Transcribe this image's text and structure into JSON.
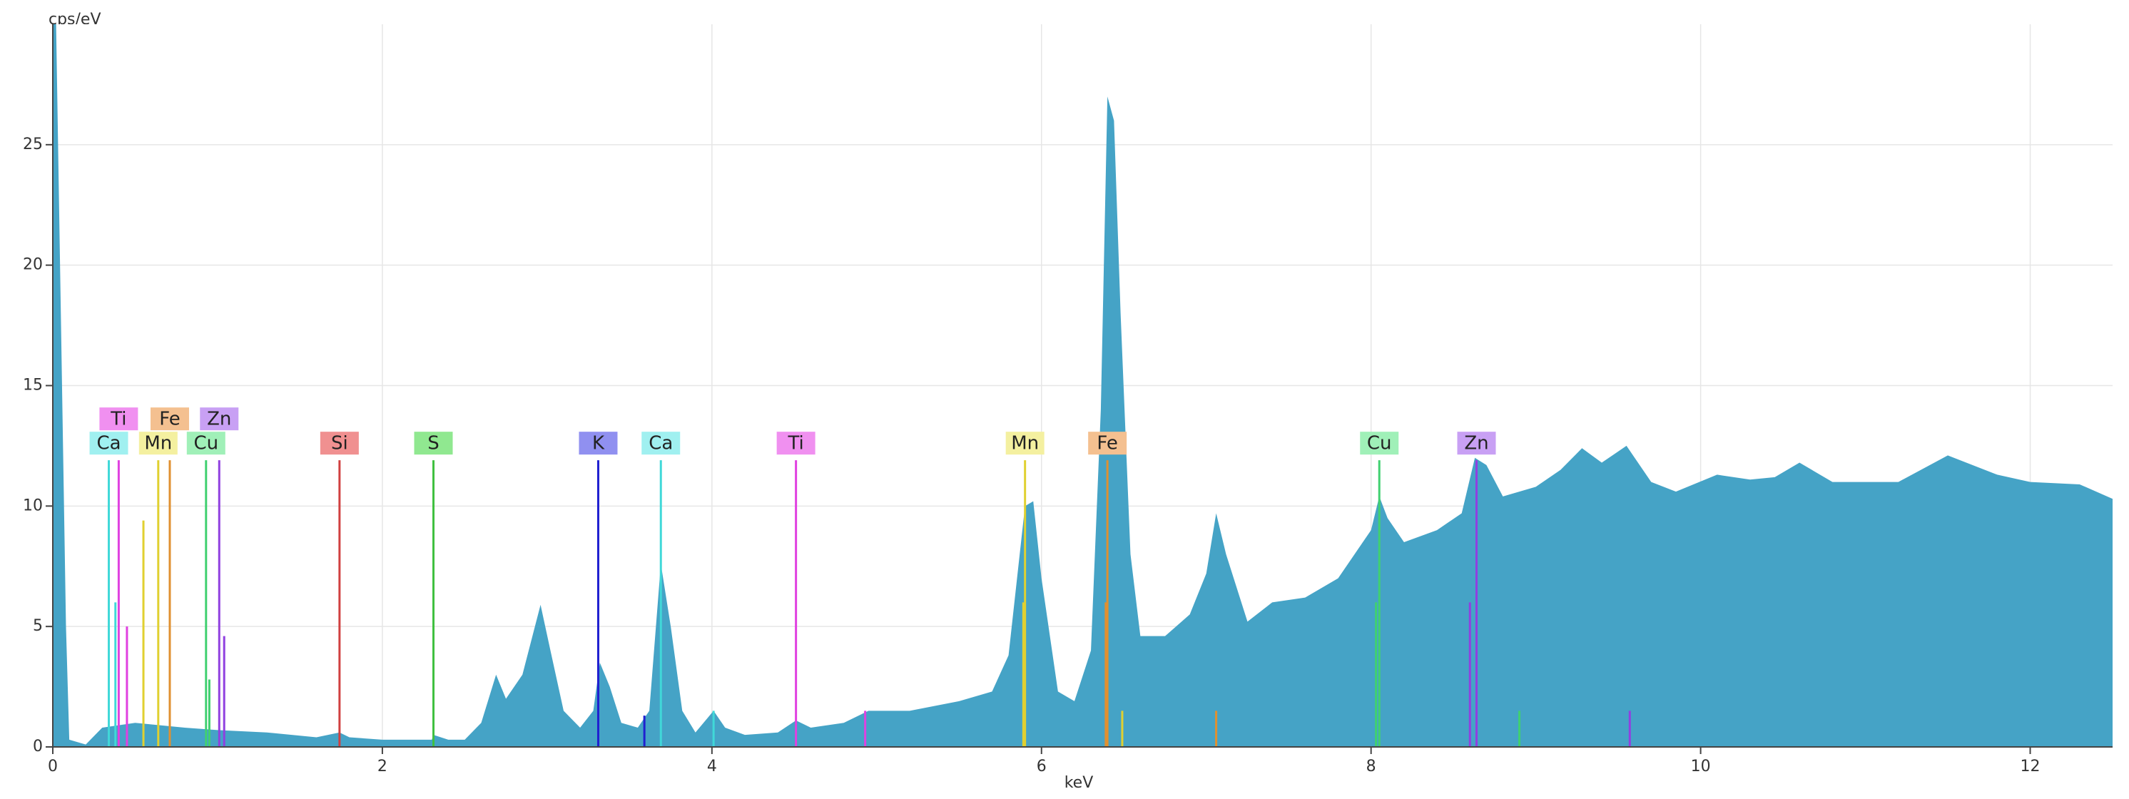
{
  "chart_data": {
    "type": "area",
    "y_label": "cps/eV",
    "x_label": "keV",
    "xlim": [
      0,
      12.5
    ],
    "ylim": [
      0,
      30
    ],
    "xticks": [
      0,
      2,
      4,
      6,
      8,
      10,
      12
    ],
    "yticks": [
      0,
      5,
      10,
      15,
      20,
      25
    ],
    "grid": true,
    "color": "#45a3c6",
    "x": [
      0,
      0.02,
      0.08,
      0.1,
      0.2,
      0.3,
      0.5,
      0.8,
      1.0,
      1.3,
      1.6,
      1.74,
      1.8,
      2.0,
      2.3,
      2.31,
      2.4,
      2.5,
      2.6,
      2.69,
      2.75,
      2.85,
      2.96,
      3.02,
      3.1,
      3.2,
      3.28,
      3.32,
      3.38,
      3.45,
      3.55,
      3.62,
      3.69,
      3.75,
      3.82,
      3.9,
      4.01,
      4.08,
      4.2,
      4.4,
      4.51,
      4.6,
      4.8,
      4.95,
      5.2,
      5.5,
      5.7,
      5.8,
      5.9,
      5.95,
      6.0,
      6.1,
      6.2,
      6.3,
      6.36,
      6.4,
      6.44,
      6.48,
      6.54,
      6.6,
      6.75,
      6.9,
      7.0,
      7.06,
      7.12,
      7.25,
      7.4,
      7.6,
      7.8,
      7.9,
      8.0,
      8.05,
      8.1,
      8.2,
      8.4,
      8.55,
      8.63,
      8.7,
      8.8,
      9.0,
      9.15,
      9.28,
      9.4,
      9.55,
      9.7,
      9.85,
      10.1,
      10.3,
      10.45,
      10.6,
      10.8,
      11.2,
      11.5,
      11.8,
      12.0,
      12.3,
      12.5
    ],
    "values": [
      30,
      30,
      5,
      0.3,
      0.1,
      0.8,
      1,
      0.8,
      0.7,
      0.6,
      0.4,
      0.6,
      0.4,
      0.3,
      0.3,
      0.5,
      0.3,
      0.3,
      1,
      3,
      2,
      3,
      5.9,
      4,
      1.5,
      0.8,
      1.5,
      3.5,
      2.5,
      1,
      0.8,
      1.5,
      7.6,
      5,
      1.5,
      0.6,
      1.5,
      0.8,
      0.5,
      0.6,
      1.1,
      0.8,
      1.0,
      1.5,
      1.5,
      1.9,
      2.3,
      3.8,
      10,
      10.2,
      7,
      2.3,
      1.9,
      4,
      14,
      27,
      26,
      18,
      8,
      4.6,
      4.6,
      5.5,
      7.2,
      9.7,
      8,
      5.2,
      6,
      6.2,
      7,
      8,
      9,
      10.4,
      9.5,
      8.5,
      9,
      9.7,
      12,
      11.7,
      10.4,
      10.8,
      11.5,
      12.4,
      11.8,
      12.5,
      11,
      10.6,
      11.3,
      11.1,
      11.2,
      11.8,
      11,
      11,
      12.1,
      11.3,
      11.0,
      10.9,
      10.3
    ],
    "markers": [
      {
        "label": "Ca",
        "x": 0.34,
        "height": 11.9,
        "color": "#40d8d8",
        "label_color": "#a0f0f0"
      },
      {
        "label": "Ti",
        "x": 0.4,
        "height": 11.9,
        "color": "#e040e0",
        "label_color": "#f090f0"
      },
      {
        "label": "Mn",
        "x": 0.64,
        "height": 11.9,
        "color": "#e0d030",
        "label_color": "#f4f0a0"
      },
      {
        "label": "Fe",
        "x": 0.71,
        "height": 11.9,
        "color": "#e09030",
        "label_color": "#f4c090"
      },
      {
        "label": "Cu",
        "x": 0.93,
        "height": 11.9,
        "color": "#40d070",
        "label_color": "#a0f0b8"
      },
      {
        "label": "Zn",
        "x": 1.01,
        "height": 11.9,
        "color": "#9040e0",
        "label_color": "#c8a0f4"
      },
      {
        "label": "Si",
        "x": 1.74,
        "height": 11.9,
        "color": "#d04040",
        "label_color": "#f09090"
      },
      {
        "label": "S",
        "x": 2.31,
        "height": 11.9,
        "color": "#40c040",
        "label_color": "#90e890"
      },
      {
        "label": "K",
        "x": 3.31,
        "height": 11.9,
        "color": "#2020d0",
        "label_color": "#9090f0"
      },
      {
        "label": "Ca",
        "x": 3.69,
        "height": 11.9,
        "color": "#40d8d8",
        "label_color": "#a0f0f0"
      },
      {
        "label": "Ti",
        "x": 4.51,
        "height": 11.9,
        "color": "#e040e0",
        "label_color": "#f090f0"
      },
      {
        "label": "Mn",
        "x": 5.9,
        "height": 11.9,
        "color": "#e0d030",
        "label_color": "#f4f0a0"
      },
      {
        "label": "Fe",
        "x": 6.4,
        "height": 11.9,
        "color": "#e09030",
        "label_color": "#f4c090"
      },
      {
        "label": "Cu",
        "x": 8.05,
        "height": 11.9,
        "color": "#40d070",
        "label_color": "#a0f0b8"
      },
      {
        "label": "Zn",
        "x": 8.64,
        "height": 11.9,
        "color": "#9040e0",
        "label_color": "#c8a0f4"
      }
    ],
    "lines": [
      {
        "x": 3.59,
        "height": 1.3,
        "color": "#2020d0"
      },
      {
        "x": 4.01,
        "height": 1.5,
        "color": "#40d8d8"
      },
      {
        "x": 4.93,
        "height": 1.5,
        "color": "#e040e0"
      },
      {
        "x": 5.89,
        "height": 6,
        "color": "#e0d030"
      },
      {
        "x": 6.49,
        "height": 1.5,
        "color": "#e0d030"
      },
      {
        "x": 6.39,
        "height": 6,
        "color": "#e09030"
      },
      {
        "x": 7.06,
        "height": 1.5,
        "color": "#e09030"
      },
      {
        "x": 8.03,
        "height": 6,
        "color": "#40d070"
      },
      {
        "x": 8.9,
        "height": 1.5,
        "color": "#40d070"
      },
      {
        "x": 8.6,
        "height": 6,
        "color": "#9040e0"
      },
      {
        "x": 9.57,
        "height": 1.5,
        "color": "#9040e0"
      },
      {
        "x": 0.55,
        "height": 9.4,
        "color": "#e0d030"
      },
      {
        "x": 0.45,
        "height": 5,
        "color": "#e040e0"
      },
      {
        "x": 1.04,
        "height": 4.6,
        "color": "#9040e0"
      },
      {
        "x": 0.38,
        "height": 6,
        "color": "#40d8d8"
      },
      {
        "x": 0.95,
        "height": 2.8,
        "color": "#40d070"
      }
    ]
  }
}
